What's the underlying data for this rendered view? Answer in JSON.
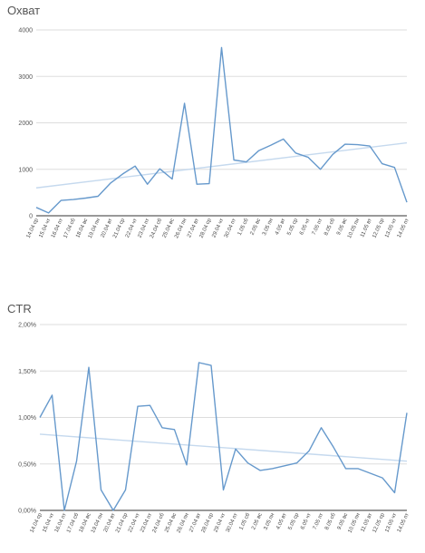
{
  "colors": {
    "series": "#6699cc",
    "trend": "#c5d9ee"
  },
  "x_labels": [
    "14.04 ср",
    "15.04 чт",
    "16.04 пт",
    "17.04 сб",
    "18.04 вс",
    "19.04 пн",
    "20.04 вт",
    "21.04 ср",
    "22.04 чт",
    "23.04 пт",
    "24.04 сб",
    "25.04 вс",
    "26.04 пн",
    "27.04 вт",
    "28.04 ср",
    "29.04 чт",
    "30.04 пт",
    "1.05 сб",
    "2.05 вс",
    "3.05 пн",
    "4.05 вт",
    "5.05 ср",
    "6.05 чт",
    "7.05 пт",
    "8.05 сб",
    "9.05 вс",
    "10.05 пн",
    "11.05 вт",
    "12.05 ср",
    "13.05 чт",
    "14.05 пт"
  ],
  "chart_data": [
    {
      "type": "line",
      "title": "Охват",
      "ylim": [
        0,
        4000
      ],
      "yticks": [
        "0",
        "1000",
        "2000",
        "3000",
        "4000"
      ],
      "grid": true,
      "trendline": [
        600,
        1570
      ],
      "values": [
        180,
        60,
        330,
        350,
        380,
        420,
        700,
        900,
        1070,
        680,
        1010,
        790,
        2420,
        680,
        690,
        3620,
        1200,
        1160,
        1400,
        1520,
        1650,
        1350,
        1260,
        1000,
        1320,
        1540,
        1530,
        1500,
        1120,
        1040,
        290
      ]
    },
    {
      "type": "line",
      "title": "CTR",
      "ylim": [
        0,
        2.0
      ],
      "yticks": [
        "0,00%",
        "0,50%",
        "1,00%",
        "1,50%",
        "2,00%"
      ],
      "grid": true,
      "trendline": [
        0.82,
        0.53
      ],
      "values": [
        1.0,
        1.24,
        0.0,
        0.53,
        1.54,
        0.22,
        0.0,
        0.22,
        1.12,
        1.13,
        0.89,
        0.87,
        0.49,
        1.59,
        1.56,
        0.22,
        0.66,
        0.51,
        0.43,
        0.45,
        0.48,
        0.51,
        0.64,
        0.89,
        0.68,
        0.45,
        0.45,
        0.4,
        0.35,
        0.19,
        1.05
      ]
    }
  ]
}
